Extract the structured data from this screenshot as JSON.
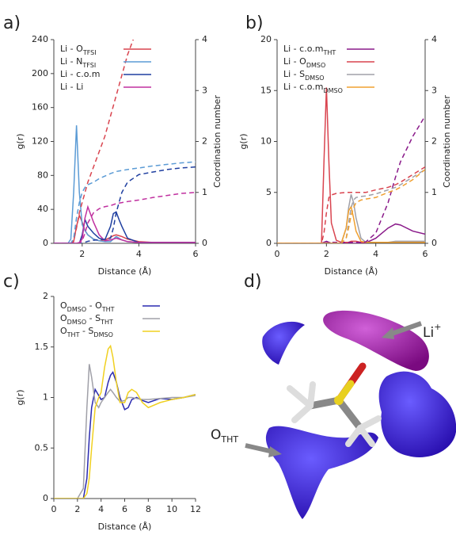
{
  "chart_data": [
    {
      "type": "line",
      "label": "a)",
      "xlabel": "Distance (Å)",
      "ylabel": "g(r)",
      "y2label": "Coordination number",
      "xlim": [
        1,
        6
      ],
      "xticks": [
        2,
        4,
        6
      ],
      "ylim": [
        0,
        240
      ],
      "yticks": [
        0,
        40,
        80,
        120,
        160,
        200,
        240
      ],
      "y2lim": [
        0,
        4
      ],
      "y2ticks": [
        0,
        1,
        2,
        3,
        4
      ],
      "legend": "upper left",
      "x": [
        1,
        1.5,
        1.6,
        1.7,
        1.8,
        1.9,
        2.0,
        2.1,
        2.2,
        2.4,
        2.6,
        2.8,
        3.0,
        3.1,
        3.2,
        3.3,
        3.4,
        3.6,
        4,
        4.5,
        5,
        5.5,
        6
      ],
      "series": [
        {
          "name": "Li - O",
          "name_sub": "TFSI",
          "color": "#d9444f",
          "values": [
            0,
            0,
            0,
            2,
            20,
            33,
            25,
            15,
            10,
            5,
            3,
            4,
            7,
            9,
            10,
            9,
            8,
            5,
            2,
            1,
            1,
            1,
            1
          ]
        },
        {
          "name": "Li - N",
          "name_sub": "TFSI",
          "color": "#5b9bd5",
          "values": [
            0,
            0,
            5,
            60,
            139,
            60,
            22,
            15,
            10,
            5,
            3,
            2,
            2,
            5,
            8,
            6,
            4,
            2,
            1,
            1,
            1,
            1,
            1
          ]
        },
        {
          "name": "Li - c.o.m",
          "color": "#1f3fa0",
          "values": [
            0,
            0,
            0,
            0,
            0,
            0,
            10,
            28,
            20,
            12,
            6,
            4,
            20,
            35,
            37,
            28,
            20,
            6,
            1,
            1,
            1,
            1,
            1
          ]
        },
        {
          "name": "Li - Li",
          "color": "#c0309f",
          "values": [
            0,
            0,
            0,
            0,
            0,
            1,
            5,
            30,
            43,
            25,
            10,
            3,
            4,
            5,
            6,
            5,
            4,
            2,
            1,
            1,
            1,
            1,
            1
          ]
        },
        {
          "color": "#d9444f",
          "axis": "y2",
          "dash": true,
          "values": [
            0,
            0,
            0,
            0.05,
            0.3,
            0.6,
            0.8,
            1.0,
            1.2,
            1.5,
            1.8,
            2.1,
            2.5,
            2.7,
            2.9,
            3.1,
            3.3,
            3.7,
            4.3,
            null,
            null,
            null,
            null
          ]
        },
        {
          "color": "#5b9bd5",
          "axis": "y2",
          "dash": true,
          "values": [
            0,
            0,
            0,
            0.1,
            0.5,
            0.8,
            1.0,
            1.1,
            1.15,
            1.2,
            1.27,
            1.32,
            1.37,
            1.39,
            1.41,
            1.42,
            1.43,
            1.45,
            1.48,
            1.52,
            1.55,
            1.58,
            1.6
          ]
        },
        {
          "color": "#1f3fa0",
          "axis": "y2",
          "dash": true,
          "values": [
            0,
            0,
            0,
            0,
            0,
            0,
            0,
            0.02,
            0.04,
            0.06,
            0.07,
            0.08,
            0.1,
            0.3,
            0.6,
            0.8,
            1.0,
            1.2,
            1.35,
            1.4,
            1.45,
            1.48,
            1.5
          ]
        },
        {
          "color": "#c0309f",
          "axis": "y2",
          "dash": true,
          "values": [
            0,
            0,
            0,
            0,
            0,
            0,
            0.05,
            0.2,
            0.4,
            0.6,
            0.68,
            0.72,
            0.74,
            0.76,
            0.78,
            0.79,
            0.8,
            0.82,
            0.85,
            0.9,
            0.94,
            0.98,
            1.0
          ]
        }
      ]
    },
    {
      "type": "line",
      "label": "b)",
      "xlabel": "Distance (Å)",
      "ylabel": "g(r)",
      "y2label": "Coordination number",
      "xlim": [
        0,
        6
      ],
      "xticks": [
        0,
        2,
        4,
        6
      ],
      "ylim": [
        0,
        20
      ],
      "yticks": [
        0,
        5,
        10,
        15,
        20
      ],
      "y2lim": [
        0,
        4
      ],
      "y2ticks": [
        0,
        1,
        2,
        3,
        4
      ],
      "legend": "upper left",
      "x": [
        0,
        1.8,
        1.9,
        2.0,
        2.1,
        2.2,
        2.4,
        2.6,
        2.8,
        2.9,
        3.0,
        3.1,
        3.2,
        3.4,
        3.6,
        4,
        4.5,
        4.8,
        5,
        5.5,
        6
      ],
      "series": [
        {
          "name": "Li - c.o.m",
          "name_sub": "THT",
          "color": "#8a1a8a",
          "values": [
            0,
            0,
            0.1,
            0.2,
            0.1,
            0,
            0,
            0,
            0,
            0,
            0,
            0,
            0,
            0,
            0.05,
            0.5,
            1.5,
            1.9,
            1.8,
            1.2,
            0.9
          ]
        },
        {
          "name": "Li - O",
          "name_sub": "DMSO",
          "color": "#d9444f",
          "values": [
            0,
            0,
            8,
            15.3,
            8,
            2,
            0.3,
            0.1,
            0.1,
            0.1,
            0.2,
            0.2,
            0.2,
            0.1,
            0.1,
            0.1,
            0.1,
            0.1,
            0.1,
            0.1,
            0.1
          ]
        },
        {
          "name": "Li - S",
          "name_sub": "DMSO",
          "color": "#a0a0a8",
          "values": [
            0,
            0,
            0,
            0,
            0,
            0,
            0,
            0,
            1.5,
            3.5,
            4.8,
            4,
            2.5,
            0.5,
            0.1,
            0.1,
            0.1,
            0.2,
            0.2,
            0.2,
            0.2
          ]
        },
        {
          "name": "Li - c.o.m",
          "name_sub": "DMSO",
          "color": "#f0a030",
          "values": [
            0,
            0,
            0,
            0,
            0,
            0,
            0,
            0,
            1.5,
            3.2,
            3.6,
            2.5,
            1.2,
            0.2,
            0.1,
            0.1,
            0.1,
            0.1,
            0.1,
            0.1,
            0.1
          ]
        },
        {
          "color": "#8a1a8a",
          "axis": "y2",
          "dash": true,
          "values": [
            0,
            0,
            0,
            0.01,
            0.02,
            0.02,
            0.02,
            0.02,
            0.02,
            0.02,
            0.02,
            0.02,
            0.02,
            0.02,
            0.03,
            0.2,
            0.8,
            1.3,
            1.6,
            2.1,
            2.5
          ]
        },
        {
          "color": "#d9444f",
          "axis": "y2",
          "dash": true,
          "values": [
            0,
            0,
            0.2,
            0.6,
            0.9,
            0.95,
            0.98,
            0.99,
            1.0,
            1.0,
            1.0,
            1.0,
            1.0,
            1.0,
            1.0,
            1.05,
            1.1,
            1.15,
            1.2,
            1.35,
            1.5
          ]
        },
        {
          "color": "#a0a0a8",
          "axis": "y2",
          "dash": true,
          "values": [
            0,
            0,
            0,
            0,
            0,
            0,
            0,
            0,
            0.1,
            0.4,
            0.7,
            0.85,
            0.9,
            0.92,
            0.93,
            0.97,
            1.05,
            1.1,
            1.15,
            1.3,
            1.45
          ]
        },
        {
          "color": "#f0a030",
          "axis": "y2",
          "dash": true,
          "values": [
            0,
            0,
            0,
            0,
            0,
            0,
            0,
            0,
            0.1,
            0.3,
            0.55,
            0.7,
            0.8,
            0.85,
            0.87,
            0.9,
            1.0,
            1.05,
            1.1,
            1.25,
            1.45
          ]
        }
      ]
    },
    {
      "type": "line",
      "label": "c)",
      "xlabel": "Distance (Å)",
      "ylabel": "g(r)",
      "xlim": [
        0,
        12
      ],
      "xticks": [
        0,
        2,
        4,
        6,
        8,
        10,
        12
      ],
      "ylim": [
        0,
        2
      ],
      "yticks": [
        0,
        0.5,
        1,
        1.5,
        2
      ],
      "legend": "upper left",
      "x": [
        0,
        2,
        2.5,
        2.8,
        3,
        3.2,
        3.5,
        3.8,
        4,
        4.3,
        4.6,
        4.8,
        5,
        5.3,
        5.6,
        6,
        6.3,
        6.6,
        7,
        7.5,
        8,
        9,
        10,
        11,
        12
      ],
      "series": [
        {
          "name": "O",
          "name_sub": "DMSO",
          "name_tail": " - O",
          "name_tail_sub": "THT",
          "color": "#2a2ab0",
          "values": [
            0,
            0,
            0,
            0.2,
            0.6,
            0.9,
            1.08,
            1.02,
            0.98,
            1.0,
            1.15,
            1.22,
            1.25,
            1.15,
            1.0,
            0.88,
            0.9,
            0.98,
            1.0,
            0.97,
            0.95,
            0.99,
            0.98,
            1.0,
            1.03
          ]
        },
        {
          "name": "O",
          "name_sub": "DMSO",
          "name_tail": " - S",
          "name_tail_sub": "THT",
          "color": "#a0a0a8",
          "values": [
            0,
            0,
            0.1,
            0.9,
            1.33,
            1.2,
            0.95,
            0.9,
            0.95,
            1.0,
            1.05,
            1.08,
            1.05,
            1.0,
            0.96,
            0.97,
            1.0,
            1.0,
            0.99,
            0.98,
            0.98,
            0.99,
            1.0,
            1.0,
            1.02
          ]
        },
        {
          "name": "O",
          "name_sub": "THT",
          "name_tail": " - S",
          "name_tail_sub": "DMSO",
          "color": "#f0d020",
          "values": [
            0,
            0,
            0,
            0.05,
            0.2,
            0.5,
            0.9,
            1.0,
            1.05,
            1.3,
            1.48,
            1.51,
            1.4,
            1.15,
            0.95,
            0.95,
            1.05,
            1.08,
            1.05,
            0.95,
            0.9,
            0.95,
            0.98,
            1.0,
            1.03
          ]
        }
      ]
    }
  ],
  "illustration": {
    "label": "d)",
    "annotations": [
      {
        "text": "Li",
        "sup": "+"
      },
      {
        "text": "O",
        "sub": "THT"
      }
    ]
  }
}
